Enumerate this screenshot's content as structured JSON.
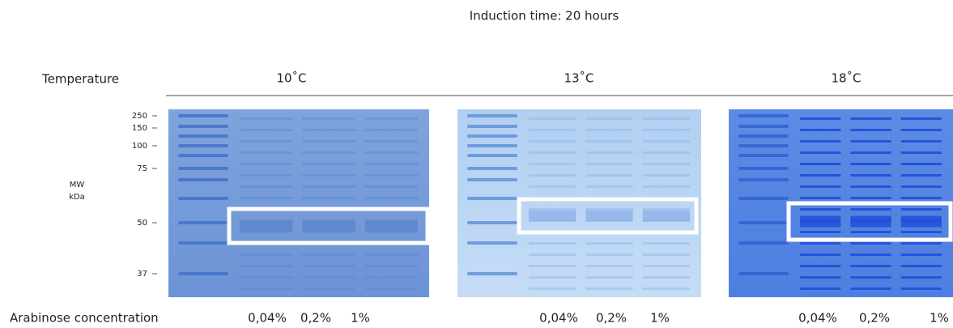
{
  "header": {
    "title": "Induction time: 20 hours"
  },
  "temperature_label": "Temperature",
  "mw_label": {
    "line1": "MW",
    "line2": "kDa"
  },
  "mw_markers": [
    "250",
    "150",
    "100",
    "75",
    "50",
    "37"
  ],
  "concentration_label": "Arabinose concentration",
  "panels": [
    {
      "temperature": "10˚C",
      "lanes": [
        "0,04%",
        "0,2%",
        "1%"
      ]
    },
    {
      "temperature": "13˚C",
      "lanes": [
        "0,04%",
        "0,2%",
        "1%"
      ]
    },
    {
      "temperature": "18˚C",
      "lanes": [
        "0,04%",
        "0,2%",
        "1%"
      ]
    }
  ]
}
